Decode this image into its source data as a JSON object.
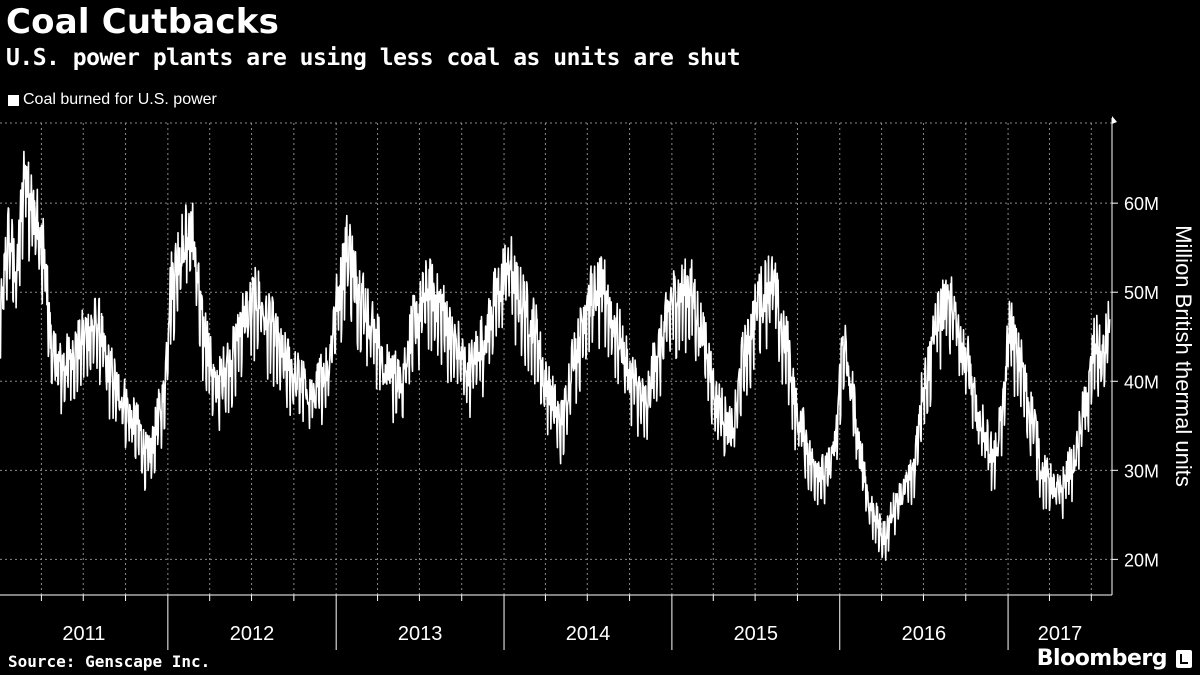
{
  "header": {
    "title": "Coal Cutbacks",
    "subtitle": "U.S. power plants are using less coal as units are shut"
  },
  "footer": {
    "source": "Source: Genscape Inc.",
    "brand": "Bloomberg"
  },
  "colors": {
    "background": "#000000",
    "line": "#ffffff",
    "grid": "#8a8a8a"
  },
  "chart_data": {
    "type": "line",
    "title": "Coal Cutbacks",
    "subtitle": "U.S. power plants are using less coal as units are shut",
    "ylabel": "Million British thermal units",
    "xlabel": "",
    "ylim": [
      16000000,
      69000000
    ],
    "yticks": [
      20000000,
      30000000,
      40000000,
      50000000,
      60000000
    ],
    "ytick_labels": [
      "20M",
      "30M",
      "40M",
      "50M",
      "60M"
    ],
    "xlim": [
      "2011-01-01",
      "2017-08-15"
    ],
    "xtick_labels": [
      "2011",
      "2012",
      "2013",
      "2014",
      "2015",
      "2016",
      "2017"
    ],
    "grid": true,
    "legend": "top-left",
    "series": [
      {
        "name": "Coal burned for U.S. power",
        "points": [
          [
            "2011-01-01",
            48000000
          ],
          [
            "2011-01-20",
            57000000
          ],
          [
            "2011-02-05",
            53000000
          ],
          [
            "2011-02-25",
            65000000
          ],
          [
            "2011-03-15",
            60000000
          ],
          [
            "2011-04-05",
            55000000
          ],
          [
            "2011-04-25",
            44000000
          ],
          [
            "2011-05-15",
            42000000
          ],
          [
            "2011-06-10",
            44000000
          ],
          [
            "2011-07-10",
            46000000
          ],
          [
            "2011-08-01",
            47000000
          ],
          [
            "2011-08-25",
            42000000
          ],
          [
            "2011-09-20",
            39000000
          ],
          [
            "2011-10-20",
            36000000
          ],
          [
            "2011-11-20",
            32000000
          ],
          [
            "2011-12-20",
            38000000
          ],
          [
            "2012-01-10",
            52000000
          ],
          [
            "2012-01-30",
            56000000
          ],
          [
            "2012-02-20",
            58000000
          ],
          [
            "2012-03-20",
            46000000
          ],
          [
            "2012-04-15",
            40000000
          ],
          [
            "2012-05-15",
            43000000
          ],
          [
            "2012-06-15",
            48000000
          ],
          [
            "2012-07-15",
            50000000
          ],
          [
            "2012-08-10",
            47000000
          ],
          [
            "2012-09-10",
            43000000
          ],
          [
            "2012-10-10",
            41000000
          ],
          [
            "2012-11-10",
            39000000
          ],
          [
            "2012-12-10",
            42000000
          ],
          [
            "2013-01-05",
            50000000
          ],
          [
            "2013-01-25",
            56000000
          ],
          [
            "2013-02-20",
            51000000
          ],
          [
            "2013-03-20",
            47000000
          ],
          [
            "2013-04-20",
            42000000
          ],
          [
            "2013-05-20",
            41000000
          ],
          [
            "2013-06-20",
            47000000
          ],
          [
            "2013-07-20",
            51000000
          ],
          [
            "2013-08-15",
            49000000
          ],
          [
            "2013-09-15",
            45000000
          ],
          [
            "2013-10-15",
            42000000
          ],
          [
            "2013-11-15",
            45000000
          ],
          [
            "2013-12-15",
            50000000
          ],
          [
            "2014-01-10",
            54000000
          ],
          [
            "2014-02-05",
            50000000
          ],
          [
            "2014-03-05",
            47000000
          ],
          [
            "2014-04-05",
            40000000
          ],
          [
            "2014-05-05",
            36000000
          ],
          [
            "2014-06-05",
            44000000
          ],
          [
            "2014-07-05",
            50000000
          ],
          [
            "2014-08-05",
            51000000
          ],
          [
            "2014-09-05",
            46000000
          ],
          [
            "2014-10-05",
            41000000
          ],
          [
            "2014-11-05",
            38000000
          ],
          [
            "2014-12-01",
            44000000
          ],
          [
            "2015-01-05",
            50000000
          ],
          [
            "2015-02-10",
            51000000
          ],
          [
            "2015-03-10",
            46000000
          ],
          [
            "2015-04-10",
            38000000
          ],
          [
            "2015-05-10",
            35000000
          ],
          [
            "2015-06-10",
            44000000
          ],
          [
            "2015-07-10",
            50000000
          ],
          [
            "2015-08-05",
            52000000
          ],
          [
            "2015-09-05",
            45000000
          ],
          [
            "2015-10-05",
            36000000
          ],
          [
            "2015-11-05",
            31000000
          ],
          [
            "2015-12-01",
            30000000
          ],
          [
            "2015-12-20",
            33000000
          ],
          [
            "2016-01-10",
            45000000
          ],
          [
            "2016-01-25",
            40000000
          ],
          [
            "2016-02-15",
            32000000
          ],
          [
            "2016-03-10",
            26000000
          ],
          [
            "2016-04-05",
            23000000
          ],
          [
            "2016-05-05",
            27000000
          ],
          [
            "2016-06-05",
            30000000
          ],
          [
            "2016-07-05",
            41000000
          ],
          [
            "2016-08-01",
            48000000
          ],
          [
            "2016-09-01",
            50000000
          ],
          [
            "2016-10-01",
            43000000
          ],
          [
            "2016-11-01",
            36000000
          ],
          [
            "2016-12-01",
            32000000
          ],
          [
            "2016-12-20",
            37000000
          ],
          [
            "2017-01-05",
            47000000
          ],
          [
            "2017-01-25",
            43000000
          ],
          [
            "2017-02-20",
            37000000
          ],
          [
            "2017-03-20",
            30000000
          ],
          [
            "2017-04-20",
            28000000
          ],
          [
            "2017-05-20",
            31000000
          ],
          [
            "2017-06-20",
            38000000
          ],
          [
            "2017-07-10",
            45000000
          ],
          [
            "2017-07-25",
            43000000
          ],
          [
            "2017-08-10",
            47000000
          ]
        ]
      }
    ]
  }
}
